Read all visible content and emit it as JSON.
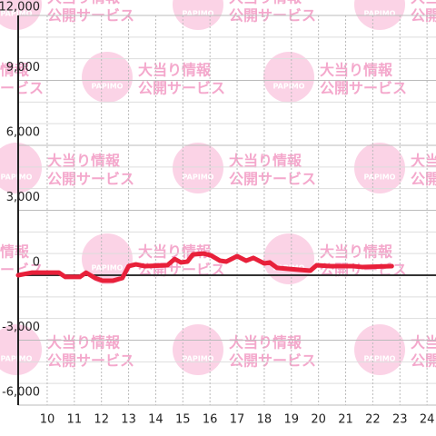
{
  "chart_data": {
    "type": "line",
    "x": [
      8.93,
      9.27,
      9.43,
      10.43,
      10.67,
      11.2,
      11.43,
      11.77,
      12.03,
      12.43,
      12.77,
      13,
      13.27,
      13.6,
      14.43,
      14.7,
      14.93,
      15.17,
      15.37,
      15.77,
      16.03,
      16.37,
      16.6,
      17,
      17.33,
      17.6,
      18,
      18.2,
      18.47,
      18.93,
      19.7,
      19.93,
      20.43,
      21.27,
      21.6,
      22.7
    ],
    "series": [
      {
        "color": "#e8203a",
        "values": [
          0,
          80,
          120,
          120,
          -80,
          -80,
          120,
          -130,
          -250,
          -250,
          -130,
          420,
          500,
          420,
          460,
          750,
          590,
          630,
          960,
          1000,
          920,
          670,
          630,
          880,
          670,
          800,
          545,
          590,
          340,
          290,
          210,
          460,
          420,
          420,
          380,
          420
        ]
      }
    ],
    "xlim": [
      8.93,
      24.33
    ],
    "xticks": [
      10,
      11,
      12,
      13,
      14,
      15,
      16,
      17,
      18,
      19,
      20,
      21,
      22,
      23,
      24
    ],
    "ylim": [
      -6000,
      12000
    ],
    "yticks": [
      {
        "value": -6000,
        "label": "-6,000"
      },
      {
        "value": -3000,
        "label": "-3,000"
      },
      0,
      {
        "value": 3000,
        "label": "3,000"
      },
      {
        "value": 6000,
        "label": "6,000"
      },
      {
        "value": 9000,
        "label": "9,000"
      },
      {
        "value": 12000,
        "label": "12,000"
      }
    ],
    "minor_yticks": [
      -5000,
      -4000,
      -2000,
      -1000,
      1000,
      2000,
      4000,
      5000,
      7000,
      8000,
      10000,
      11000
    ],
    "grid": true,
    "watermark": {
      "line1": "大当り情報",
      "line2": "公開サービス",
      "logo": "PAPIMO"
    }
  }
}
